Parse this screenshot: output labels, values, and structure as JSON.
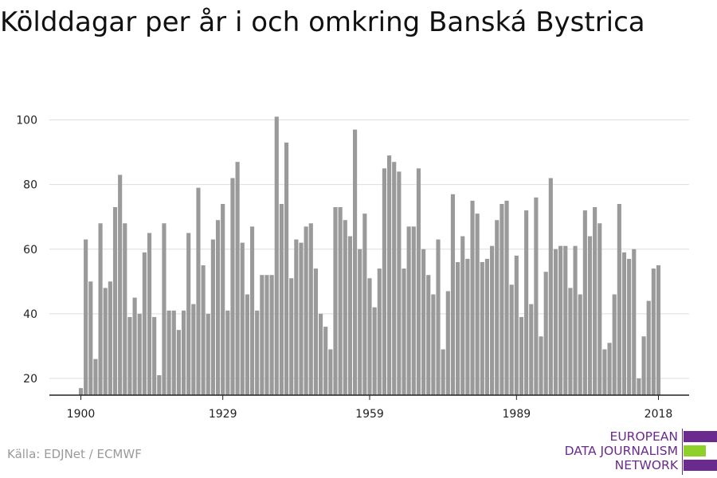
{
  "title": "Kölddagar per år i och omkring Banská Bystrica",
  "source": "Källa: EDJNet / ECMWF",
  "logo": {
    "lines": [
      "EUROPEAN",
      "DATA JOURNALISM",
      "NETWORK"
    ],
    "colors": {
      "purple": "#6a2a8e",
      "green": "#8fd12a"
    }
  },
  "colors": {
    "bar": "#9a9a9a",
    "grid": "#dddddd",
    "axis": "#222222"
  },
  "chart_data": {
    "type": "bar",
    "x_start": 1900,
    "x_end": 2018,
    "values": [
      17,
      63,
      50,
      26,
      68,
      48,
      50,
      73,
      83,
      68,
      39,
      45,
      40,
      59,
      65,
      39,
      21,
      68,
      41,
      41,
      35,
      41,
      65,
      43,
      79,
      55,
      40,
      63,
      69,
      74,
      41,
      82,
      87,
      62,
      46,
      67,
      41,
      52,
      52,
      52,
      101,
      74,
      93,
      51,
      63,
      62,
      67,
      68,
      54,
      40,
      36,
      29,
      73,
      73,
      69,
      64,
      97,
      60,
      71,
      51,
      42,
      54,
      85,
      89,
      87,
      84,
      54,
      67,
      67,
      85,
      60,
      52,
      46,
      63,
      29,
      47,
      77,
      56,
      64,
      57,
      75,
      71,
      56,
      57,
      61,
      69,
      74,
      75,
      49,
      58,
      39,
      72,
      43,
      76,
      33,
      53,
      82,
      60,
      61,
      61,
      48,
      61,
      46,
      72,
      64,
      73,
      68,
      29,
      31,
      46,
      74,
      59,
      57,
      60,
      20,
      33,
      44,
      54,
      55
    ],
    "ylim": [
      14,
      102
    ],
    "yticks": [
      20,
      40,
      60,
      80,
      100
    ],
    "xticks": [
      "1900",
      "1929",
      "1959",
      "1989",
      "2018"
    ],
    "grid": true,
    "legend": "none"
  }
}
